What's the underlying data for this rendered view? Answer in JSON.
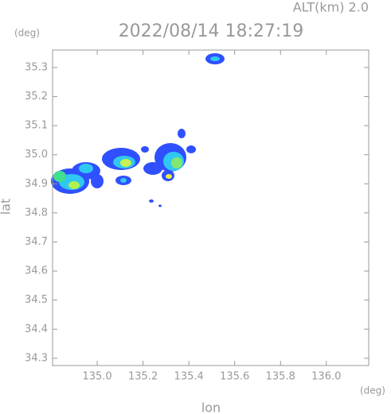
{
  "chart_data": {
    "type": "radar",
    "title": "2022/08/14 18:27:19",
    "annotation": "ALT(km) 2.0",
    "y_unit": "(deg)",
    "x_unit": "(deg)",
    "x_label": "lon",
    "y_label": "lat",
    "xlim": [
      134.805,
      136.185
    ],
    "ylim": [
      34.275,
      35.36
    ],
    "xticks": [
      {
        "value": 135.0,
        "label": "135.0"
      },
      135.2,
      135.4,
      135.6,
      135.8,
      {
        "value": 136.0,
        "label": "136.0"
      }
    ],
    "yticks": [
      34.3,
      34.4,
      34.5,
      34.6,
      34.7,
      34.8,
      34.9,
      {
        "value": 35.0,
        "label": "35.0"
      },
      35.1,
      35.2,
      35.3
    ],
    "frame_color": "#999999"
  }
}
